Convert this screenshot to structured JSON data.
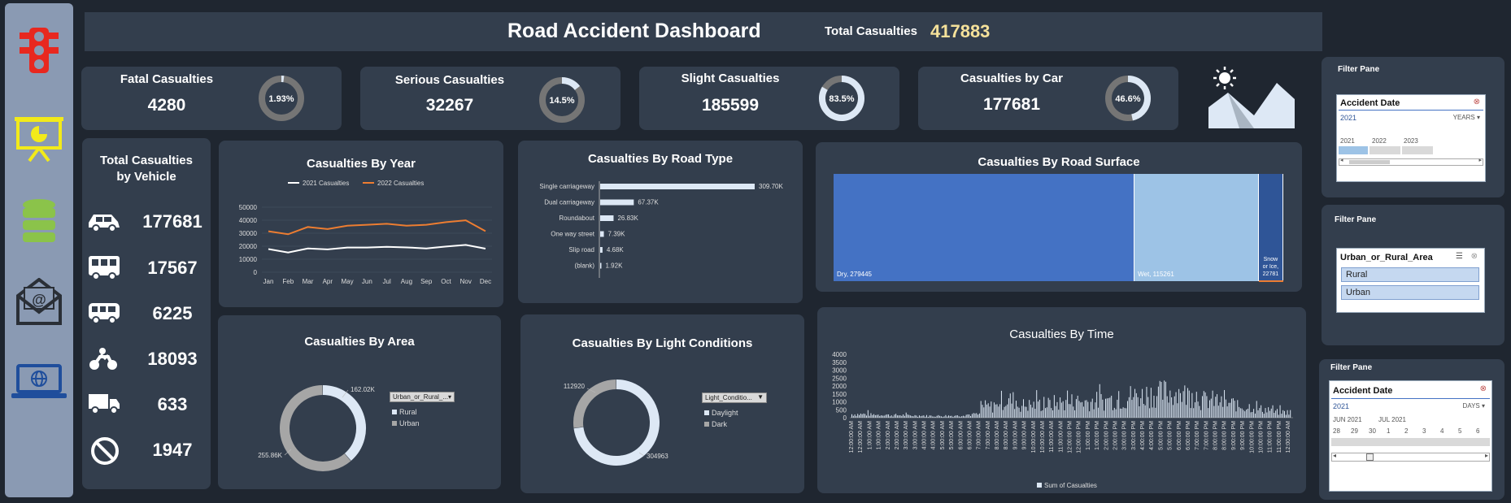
{
  "header": {
    "title": "Road Accident Dashboard",
    "total_label": "Total Casualties",
    "total_value": "417883"
  },
  "kpis": [
    {
      "title": "Fatal  Casualties",
      "value": "4280",
      "pct_label": "1.93%",
      "pct": 0.0193
    },
    {
      "title": "Serious Casualties",
      "value": "32267",
      "pct_label": "14.5%",
      "pct": 0.145
    },
    {
      "title": "Slight Casualties",
      "value": "185599",
      "pct_label": "83.5%",
      "pct": 0.835
    },
    {
      "title": "Casualties by Car",
      "value": "177681",
      "pct_label": "46.6%",
      "pct": 0.466
    }
  ],
  "vehicles": {
    "title_line1": "Total Casualties",
    "title_line2": "by Vehicle",
    "items": [
      {
        "icon": "car-icon",
        "value": "177681"
      },
      {
        "icon": "bus-icon",
        "value": "17567"
      },
      {
        "icon": "van-icon",
        "value": "6225"
      },
      {
        "icon": "motorcycle-icon",
        "value": "18093"
      },
      {
        "icon": "truck-icon",
        "value": "633"
      },
      {
        "icon": "no-entry-icon",
        "value": "1947"
      }
    ]
  },
  "chart_data": [
    {
      "type": "line",
      "title": "Casualties By Year",
      "categories": [
        "Jan",
        "Feb",
        "Mar",
        "Apr",
        "May",
        "Jun",
        "Jul",
        "Aug",
        "Sep",
        "Oct",
        "Nov",
        "Dec"
      ],
      "yticks": [
        "0",
        "10000",
        "20000",
        "30000",
        "40000",
        "50000"
      ],
      "ylim": [
        0,
        50000
      ],
      "series": [
        {
          "name": "2021 Casualties",
          "color": "#ffffff",
          "values": [
            17800,
            15200,
            18300,
            17600,
            19000,
            19000,
            19500,
            19100,
            18300,
            19800,
            21000,
            18100
          ]
        },
        {
          "name": "2022 Casualties",
          "color": "#ed7d31",
          "values": [
            31500,
            29200,
            34800,
            33200,
            35800,
            36500,
            37300,
            35800,
            36500,
            38500,
            39900,
            31600
          ]
        }
      ]
    },
    {
      "type": "bar",
      "title": "Casualties By Road Type",
      "categories": [
        "Single carriageway",
        "Dual carriageway",
        "Roundabout",
        "One way street",
        "Slip road",
        "(blank)"
      ],
      "values": [
        309700,
        67370,
        26830,
        7390,
        4680,
        1920
      ],
      "labels": [
        "309.70K",
        "67.37K",
        "26.83K",
        "7.39K",
        "4.68K",
        "1.92K"
      ]
    },
    {
      "type": "heatmap",
      "title": "Casualties By Road Surface",
      "categories": [
        "Dry",
        "Wet",
        "Snow or Ice"
      ],
      "values": [
        279445,
        115261,
        22781
      ],
      "labels": [
        "Dry, 279445",
        "Wet, 115261",
        "Snow or Ice, 22781"
      ]
    },
    {
      "type": "pie",
      "title": "Casualties By Area",
      "categories": [
        "Rural",
        "Urban"
      ],
      "values": [
        162020,
        255860
      ],
      "labels": [
        "162.02K",
        "255.86K"
      ],
      "legend_filter": "Urban_or_Rural_..."
    },
    {
      "type": "pie",
      "title": "Casualties By Light Conditions",
      "categories": [
        "Daylight",
        "Dark"
      ],
      "values": [
        304963,
        112920
      ],
      "labels": [
        "304963",
        "112920"
      ],
      "legend_filter": "Light_Conditio..."
    },
    {
      "type": "bar",
      "title": "Casualties By Time",
      "yticks": [
        "0",
        "500",
        "1000",
        "1500",
        "2000",
        "2500",
        "3000",
        "3500",
        "4000"
      ],
      "ylim": [
        0,
        4000
      ],
      "series_name": "Sum of Casualties",
      "xlabels": [
        "12:00:00 AM",
        "12:00:00 AM",
        "1:00:00 AM",
        "1:00:00 AM",
        "2:00:00 AM",
        "2:00:00 AM",
        "3:00:00 AM",
        "3:00:00 AM",
        "4:00:00 AM",
        "4:00:00 AM",
        "5:00:00 AM",
        "5:00:00 AM",
        "6:00:00 AM",
        "6:00:00 AM",
        "7:00:00 AM",
        "7:00:00 AM",
        "8:00:00 AM",
        "8:00:00 AM",
        "9:00:00 AM",
        "9:00:00 AM",
        "10:00:00 AM",
        "10:00:00 AM",
        "11:00:00 AM",
        "11:00:00 AM",
        "12:00:00 PM",
        "12:00:00 PM",
        "1:00:00 PM",
        "1:00:00 PM",
        "2:00:00 PM",
        "2:00:00 PM",
        "3:00:00 PM",
        "3:00:00 PM",
        "4:00:00 PM",
        "4:00:00 PM",
        "5:00:00 PM",
        "5:00:00 PM",
        "6:00:00 PM",
        "6:00:00 PM",
        "7:00:00 PM",
        "7:00:00 PM",
        "8:00:00 PM",
        "8:00:00 PM",
        "9:00:00 PM",
        "9:00:00 PM",
        "10:00:00 PM",
        "10:00:00 PM",
        "11:00:00 PM",
        "11:00:00 PM",
        "12:00:00 AM"
      ],
      "hourly_peaks": [
        500,
        420,
        360,
        300,
        260,
        280,
        450,
        1600,
        2500,
        1800,
        1900,
        2100,
        2300,
        2400,
        2600,
        3100,
        3400,
        3600,
        3300,
        2500,
        2000,
        1600,
        1200,
        800
      ]
    }
  ],
  "filters": {
    "pane_title": "Filter Pane",
    "date1": {
      "header": "Accident Date",
      "selected": "2021",
      "level": "YEARS",
      "options": [
        "2021",
        "2022",
        "2023"
      ]
    },
    "area": {
      "header": "Urban_or_Rural_Area",
      "options": [
        "Rural",
        "Urban"
      ]
    },
    "date2": {
      "header": "Accident Date",
      "selected": "2021",
      "level": "DAYS",
      "months": [
        "JUN 2021",
        "JUL 2021"
      ],
      "days": [
        "28",
        "29",
        "30",
        "1",
        "2",
        "3",
        "4",
        "5",
        "6"
      ]
    }
  },
  "colors": {
    "background": "#1f2630",
    "card": "#333e4d",
    "accent": "#f5e19a",
    "orange": "#ed7d31",
    "dry": "#4472c4",
    "wet": "#9dc3e6",
    "snow": "#2f5597"
  }
}
